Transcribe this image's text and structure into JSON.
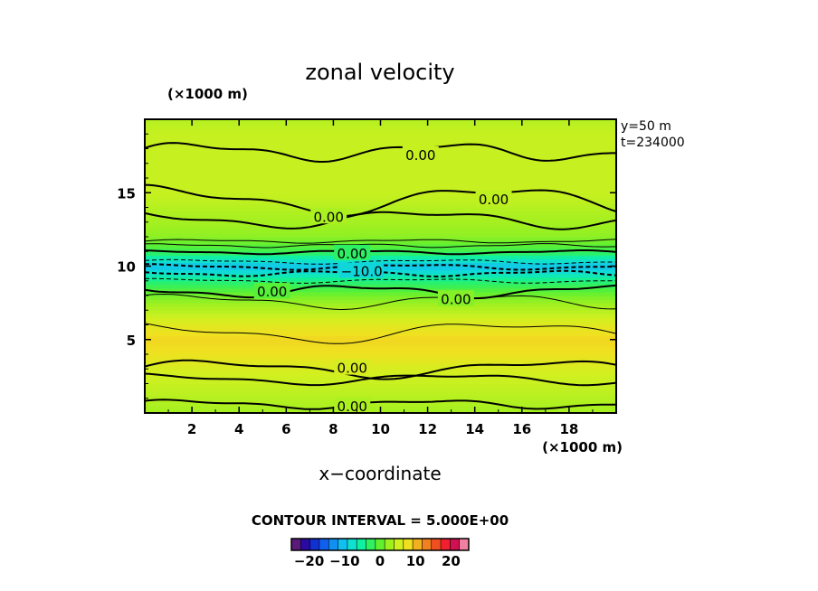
{
  "chart_data": {
    "type": "heatmap",
    "title": "zonal velocity",
    "xlabel": "x−coordinate",
    "x_unit": "(×1000 m)",
    "y_unit": "(×1000 m)",
    "ylabel": "",
    "xlim": [
      0,
      20
    ],
    "ylim": [
      0,
      20
    ],
    "x_ticks": [
      "2",
      "4",
      "6",
      "8",
      "10",
      "12",
      "14",
      "16",
      "18"
    ],
    "y_ticks": [
      "5",
      "10",
      "15"
    ],
    "annotation_y": "y=50 m",
    "annotation_t": "t=234000",
    "contour_interval": "CONTOUR INTERVAL = 5.000E+00",
    "contour_labels": [
      {
        "text": "0.00",
        "x": 11.7,
        "y": 17.6
      },
      {
        "text": "0.00",
        "x": 14.8,
        "y": 14.6
      },
      {
        "text": "0.00",
        "x": 7.8,
        "y": 13.4
      },
      {
        "text": "0.00",
        "x": 8.8,
        "y": 10.9
      },
      {
        "text": "−10.0",
        "x": 9.2,
        "y": 9.7
      },
      {
        "text": "0.00",
        "x": 5.4,
        "y": 8.3
      },
      {
        "text": "0.00",
        "x": 13.2,
        "y": 7.8
      },
      {
        "text": "0.00",
        "x": 8.8,
        "y": 3.1
      },
      {
        "text": "0.00",
        "x": 8.8,
        "y": 0.5
      }
    ],
    "field_profile": {
      "y": [
        0,
        1,
        2,
        3,
        4,
        5,
        6,
        7,
        8,
        9,
        9.5,
        10,
        10.5,
        11,
        12,
        13,
        14,
        15,
        16,
        17,
        18,
        19,
        20
      ],
      "u": [
        3,
        4,
        5,
        6,
        8,
        9,
        7,
        4,
        1,
        -4,
        -8,
        -11,
        -7,
        -2,
        2,
        3,
        4,
        5,
        5,
        5,
        5,
        5,
        4
      ]
    },
    "colorbar": {
      "range": [
        -25,
        25
      ],
      "tick_labels": [
        "−20",
        "−10",
        "0",
        "10",
        "20"
      ],
      "tick_values": [
        -20,
        -10,
        0,
        10,
        20
      ],
      "colors": [
        "#5a1a7a",
        "#2a0aa0",
        "#1030d0",
        "#1060f0",
        "#1090f0",
        "#10c0f0",
        "#10e0d0",
        "#10f0a0",
        "#30f060",
        "#60f030",
        "#a0f020",
        "#d0f020",
        "#f0e020",
        "#f0b020",
        "#f08020",
        "#f05020",
        "#f02030",
        "#d01050",
        "#f080a0"
      ]
    }
  }
}
